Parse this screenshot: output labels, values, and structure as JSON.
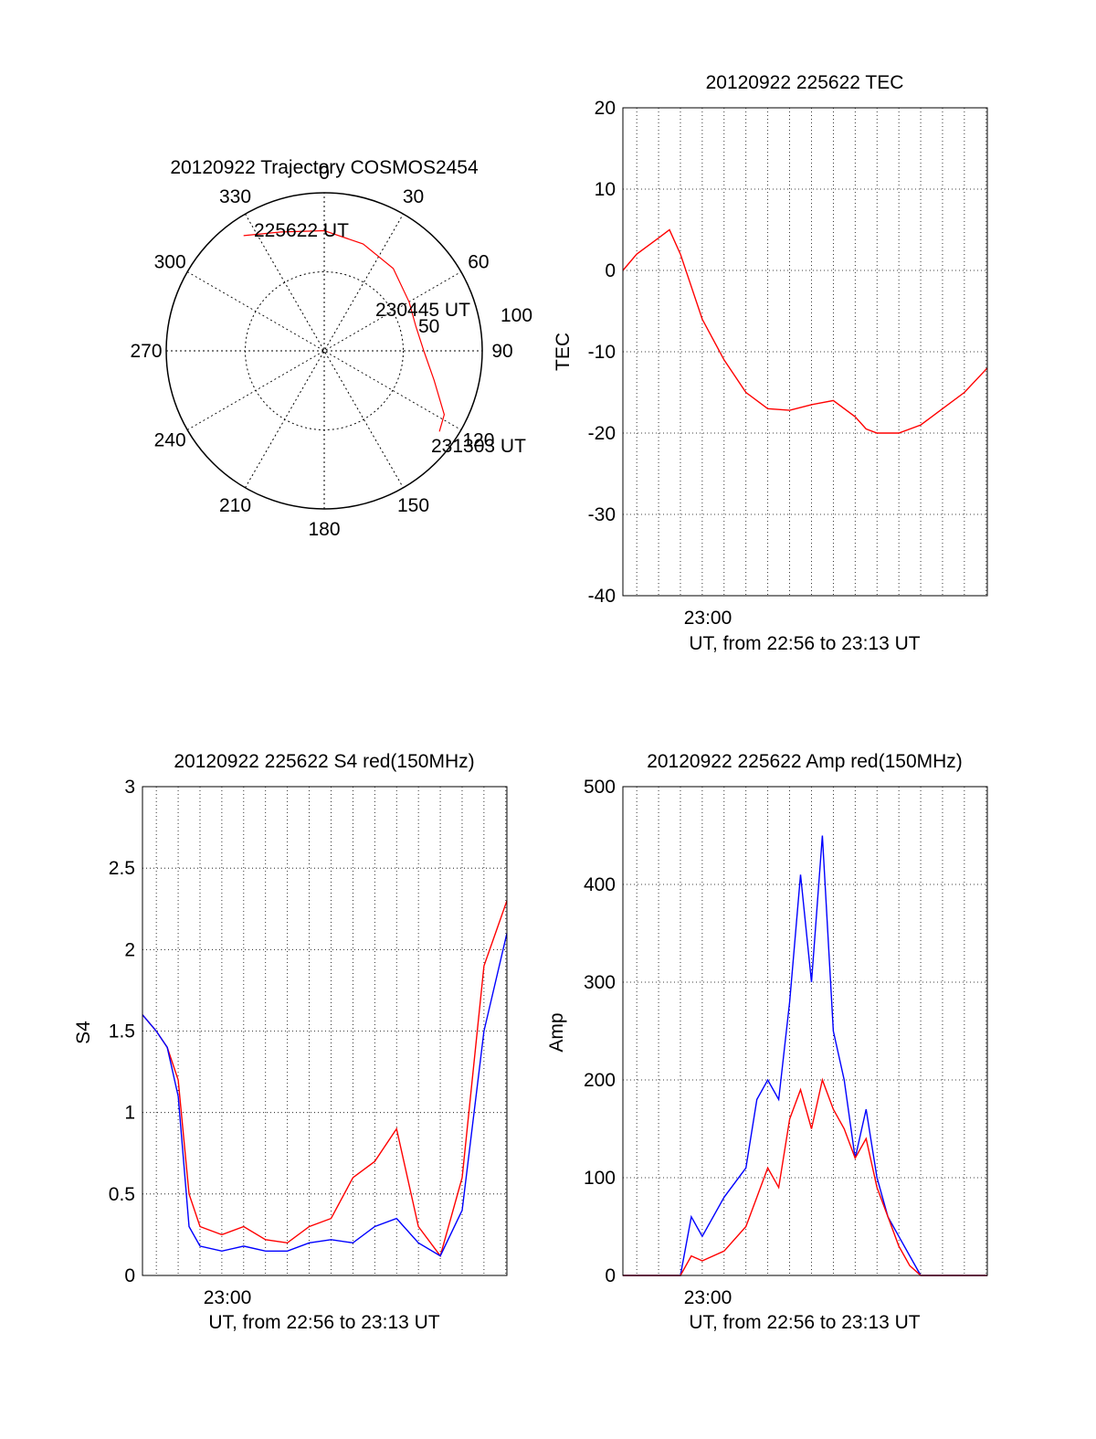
{
  "colors": {
    "red": "#ff0000",
    "blue": "#0000ff",
    "axis": "#000000"
  },
  "chart_data": [
    {
      "type": "polar",
      "title": "20120922 Trajectory COSMOS2454",
      "azimuth_ticks": [
        "0",
        "30",
        "60",
        "90",
        "120",
        "150",
        "180",
        "210",
        "240",
        "270",
        "300",
        "330"
      ],
      "radial_ticks": [
        "50",
        "100"
      ],
      "radial_range": [
        0,
        100
      ],
      "annotations": [
        "225622 UT",
        "230445 UT",
        "231303 UT"
      ],
      "series": [
        {
          "color": "red",
          "az": [
            325,
            340,
            0,
            20,
            40,
            60,
            75,
            90,
            105,
            118,
            125
          ],
          "r": [
            89,
            80,
            76,
            72,
            68,
            62,
            60,
            63,
            72,
            86,
            89
          ]
        }
      ]
    },
    {
      "type": "line",
      "title": "20120922 225622 TEC",
      "xlabel": "UT, from 22:56 to 23:13 UT",
      "ylabel": "TEC",
      "x_tick_label": "23:00",
      "xlim": [
        "22:56:22",
        "23:13:03"
      ],
      "ylim": [
        -40,
        20
      ],
      "y_ticks": [
        "20",
        "10",
        "0",
        "-10",
        "-20",
        "-30",
        "-40"
      ],
      "grid": true,
      "series": [
        {
          "color": "red",
          "x": [
            "22:56:22",
            "22:57:00",
            "22:58:00",
            "22:58:30",
            "22:59:00",
            "23:00:00",
            "23:01:00",
            "23:02:00",
            "23:03:00",
            "23:04:00",
            "23:05:00",
            "23:06:00",
            "23:07:00",
            "23:07:30",
            "23:08:00",
            "23:09:00",
            "23:10:00",
            "23:11:00",
            "23:12:00",
            "23:13:03"
          ],
          "y": [
            0,
            2,
            4,
            5,
            2,
            -6,
            -11,
            -15,
            -17,
            -17.2,
            -16.5,
            -16,
            -18,
            -19.5,
            -20,
            -20,
            -19,
            -17,
            -15,
            -12
          ]
        }
      ]
    },
    {
      "type": "line",
      "title": "20120922 225622 S4 red(150MHz)",
      "xlabel": "UT, from 22:56 to 23:13 UT",
      "ylabel": "S4",
      "x_tick_label": "23:00",
      "xlim": [
        "22:56:22",
        "23:13:03"
      ],
      "ylim": [
        0,
        3
      ],
      "y_ticks": [
        "3",
        "2.5",
        "2",
        "1.5",
        "1",
        "0.5",
        "0"
      ],
      "grid": true,
      "series": [
        {
          "color": "red",
          "x": [
            "22:56:22",
            "22:57:00",
            "22:57:30",
            "22:58:00",
            "22:58:30",
            "22:59:00",
            "23:00:00",
            "23:01:00",
            "23:02:00",
            "23:03:00",
            "23:04:00",
            "23:05:00",
            "23:06:00",
            "23:07:00",
            "23:08:00",
            "23:09:00",
            "23:10:00",
            "23:11:00",
            "23:12:00",
            "23:13:03"
          ],
          "y": [
            1.6,
            1.5,
            1.4,
            1.2,
            0.5,
            0.3,
            0.25,
            0.3,
            0.22,
            0.2,
            0.3,
            0.35,
            0.6,
            0.7,
            0.9,
            0.3,
            0.12,
            0.6,
            1.9,
            2.3
          ]
        },
        {
          "color": "blue",
          "x": [
            "22:56:22",
            "22:57:00",
            "22:57:30",
            "22:58:00",
            "22:58:30",
            "22:59:00",
            "23:00:00",
            "23:01:00",
            "23:02:00",
            "23:03:00",
            "23:04:00",
            "23:05:00",
            "23:06:00",
            "23:07:00",
            "23:08:00",
            "23:09:00",
            "23:10:00",
            "23:11:00",
            "23:12:00",
            "23:13:03"
          ],
          "y": [
            1.6,
            1.5,
            1.4,
            1.1,
            0.3,
            0.18,
            0.15,
            0.18,
            0.15,
            0.15,
            0.2,
            0.22,
            0.2,
            0.3,
            0.35,
            0.2,
            0.12,
            0.4,
            1.5,
            2.1
          ]
        }
      ]
    },
    {
      "type": "line",
      "title": "20120922 225622 Amp red(150MHz)",
      "xlabel": "UT, from 22:56 to 23:13 UT",
      "ylabel": "Amp",
      "x_tick_label": "23:00",
      "xlim": [
        "22:56:22",
        "23:13:03"
      ],
      "ylim": [
        0,
        500
      ],
      "y_ticks": [
        "500",
        "400",
        "300",
        "200",
        "100",
        "0"
      ],
      "grid": true,
      "series": [
        {
          "color": "blue",
          "x": [
            "22:56:22",
            "22:59:00",
            "22:59:30",
            "23:00:00",
            "23:01:00",
            "23:02:00",
            "23:02:30",
            "23:03:00",
            "23:03:30",
            "23:04:00",
            "23:04:30",
            "23:05:00",
            "23:05:30",
            "23:06:00",
            "23:06:30",
            "23:07:00",
            "23:07:30",
            "23:08:00",
            "23:08:30",
            "23:09:00",
            "23:09:30",
            "23:10:00",
            "23:11:00",
            "23:13:03"
          ],
          "y": [
            0,
            0,
            60,
            40,
            80,
            110,
            180,
            200,
            180,
            280,
            410,
            300,
            450,
            250,
            200,
            120,
            170,
            100,
            60,
            40,
            20,
            0,
            0,
            0
          ]
        },
        {
          "color": "red",
          "x": [
            "22:56:22",
            "22:59:00",
            "22:59:30",
            "23:00:00",
            "23:01:00",
            "23:02:00",
            "23:02:30",
            "23:03:00",
            "23:03:30",
            "23:04:00",
            "23:04:30",
            "23:05:00",
            "23:05:30",
            "23:06:00",
            "23:06:30",
            "23:07:00",
            "23:07:30",
            "23:08:00",
            "23:08:30",
            "23:09:00",
            "23:09:30",
            "23:10:00",
            "23:11:00",
            "23:13:03"
          ],
          "y": [
            0,
            0,
            20,
            15,
            25,
            50,
            80,
            110,
            90,
            160,
            190,
            150,
            200,
            170,
            150,
            120,
            140,
            90,
            60,
            30,
            10,
            0,
            0,
            0
          ]
        }
      ]
    }
  ]
}
